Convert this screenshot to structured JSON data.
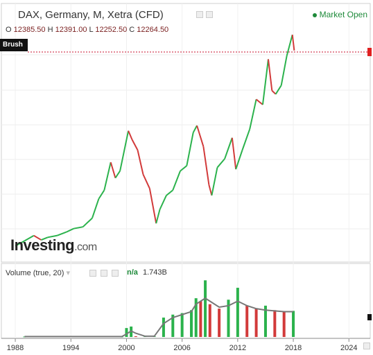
{
  "header": {
    "title": "DAX, Germany, M, Xetra (CFD)",
    "market_status": "Market Open",
    "ohlc": {
      "o_label": "O",
      "o": "12385.50",
      "h_label": "H",
      "h": "12391.00",
      "l_label": "L",
      "l": "12252.50",
      "c_label": "C",
      "c": "12264.50"
    }
  },
  "brush_label": "Brush",
  "volume_panel": {
    "title": "Volume (true, 20)",
    "na": "n/a",
    "value": "1.743B"
  },
  "logo": {
    "text": "Investing",
    "suffix": ".com"
  },
  "colors": {
    "up": "#2bb24c",
    "down": "#d23a3a",
    "ma": "#777777",
    "crosshair": "#c8102e"
  },
  "icons": [
    "eye-icon",
    "gear-icon",
    "close-icon",
    "chevron-down-icon",
    "calendar-icon"
  ],
  "chart_data": {
    "type": "line",
    "x_ticks": [
      "1988",
      "1994",
      "2000",
      "2006",
      "2012",
      "2018",
      "2024"
    ],
    "x_tick_values": [
      1988,
      1994,
      2000,
      2006,
      2012,
      2018,
      2024
    ],
    "xlim": [
      1986.5,
      2026.3
    ],
    "price_series": {
      "x": [
        1988.0,
        1989.0,
        1990.0,
        1990.8,
        1991.5,
        1992.5,
        1993.5,
        1994.3,
        1995.3,
        1996.3,
        1997.0,
        1997.6,
        1998.3,
        1998.8,
        1999.3,
        2000.2,
        2000.6,
        2001.2,
        2001.8,
        2002.5,
        2003.2,
        2003.6,
        2004.3,
        2005.0,
        2005.8,
        2006.5,
        2007.2,
        2007.6,
        2008.3,
        2008.9,
        2009.2,
        2009.8,
        2010.6,
        2011.4,
        2011.8,
        2012.5,
        2013.3,
        2014.0,
        2014.7,
        2015.3,
        2015.7,
        2016.1,
        2016.7,
        2017.3,
        2017.9,
        2018.1
      ],
      "y": [
        1100,
        1400,
        1700,
        1450,
        1600,
        1700,
        1900,
        2100,
        2200,
        2700,
        3800,
        4300,
        5900,
        5000,
        5400,
        7700,
        7200,
        6600,
        5200,
        4400,
        2400,
        3200,
        4000,
        4300,
        5400,
        5700,
        7600,
        8000,
        6800,
        4600,
        4000,
        5600,
        6100,
        7300,
        5500,
        6600,
        7800,
        9500,
        9200,
        11800,
        10000,
        9800,
        10300,
        12000,
        13200,
        12300
      ],
      "ylim": [
        500,
        14000
      ]
    },
    "volume_series": {
      "x": [
        1989.0,
        1999.5,
        2000.0,
        2000.5,
        2001.0,
        2002.0,
        2003.0,
        2004.0,
        2005.0,
        2006.0,
        2007.0,
        2007.5,
        2008.0,
        2008.5,
        2009.0,
        2010.0,
        2011.0,
        2012.0,
        2013.0,
        2014.0,
        2015.0,
        2016.0,
        2017.0,
        2018.0
      ],
      "y": [
        0.03,
        0.03,
        0.6,
        0.7,
        0.05,
        0.05,
        0.05,
        1.3,
        1.5,
        1.6,
        1.8,
        2.6,
        2.4,
        3.8,
        2.2,
        1.9,
        2.5,
        3.3,
        2.1,
        1.9,
        2.1,
        1.8,
        1.7,
        1.75
      ],
      "ma": [
        0.03,
        0.03,
        0.2,
        0.4,
        0.25,
        0.05,
        0.05,
        0.9,
        1.3,
        1.5,
        1.7,
        2.2,
        2.4,
        2.6,
        2.4,
        2.0,
        2.1,
        2.4,
        2.1,
        1.9,
        1.8,
        1.75,
        1.7,
        1.7
      ],
      "ylim": [
        0,
        4
      ]
    }
  }
}
